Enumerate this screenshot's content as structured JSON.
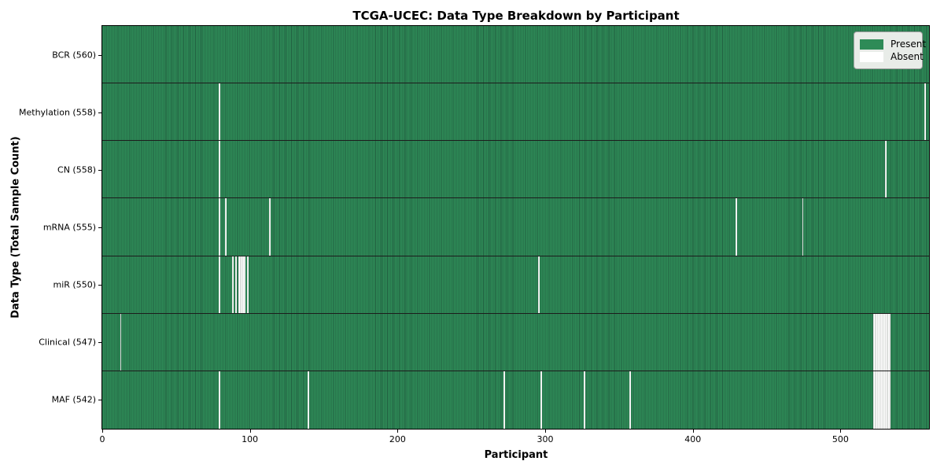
{
  "chart_data": {
    "type": "heatmap",
    "title": "TCGA-UCEC: Data Type Breakdown by Participant",
    "xlabel": "Participant",
    "ylabel": "Data Type (Total Sample Count)",
    "n_participants": 560,
    "x_ticks": [
      0,
      100,
      200,
      300,
      400,
      500
    ],
    "legend": [
      {
        "label": "Present",
        "color": "#2e8b57"
      },
      {
        "label": "Absent",
        "color": "#ffffff"
      }
    ],
    "colors": {
      "present": "#2e8b57",
      "present_edge": "#215f40",
      "absent": "#ffffff",
      "absent_edge": "#b9beb9",
      "row_separator": "#1c1c1c",
      "plot_border": "#000000",
      "legend_bg": "#e8ece8",
      "legend_border": "#9c9c9c"
    },
    "rows": [
      {
        "label": "BCR (560)",
        "data_type": "BCR",
        "present_count": 560,
        "absent_participants": []
      },
      {
        "label": "Methylation (558)",
        "data_type": "Methylation",
        "present_count": 558,
        "absent_participants": [
          79,
          557
        ]
      },
      {
        "label": "CN (558)",
        "data_type": "CN",
        "present_count": 558,
        "absent_participants": [
          79,
          530
        ]
      },
      {
        "label": "mRNA (555)",
        "data_type": "mRNA",
        "present_count": 555,
        "absent_participants": [
          79,
          83,
          113,
          429,
          474
        ]
      },
      {
        "label": "miR (550)",
        "data_type": "miR",
        "present_count": 550,
        "absent_participants": [
          79,
          88,
          90,
          92,
          93,
          94,
          95,
          96,
          98,
          295
        ]
      },
      {
        "label": "Clinical (547)",
        "data_type": "Clinical",
        "present_count": 547,
        "absent_participants": [
          12,
          522,
          523,
          524,
          525,
          526,
          527,
          528,
          529,
          530,
          531,
          532,
          533
        ]
      },
      {
        "label": "MAF (542)",
        "data_type": "MAF",
        "present_count": 542,
        "absent_participants": [
          79,
          139,
          272,
          297,
          326,
          357,
          522,
          523,
          524,
          525,
          526,
          527,
          528,
          529,
          530,
          531,
          532,
          533
        ]
      }
    ]
  }
}
